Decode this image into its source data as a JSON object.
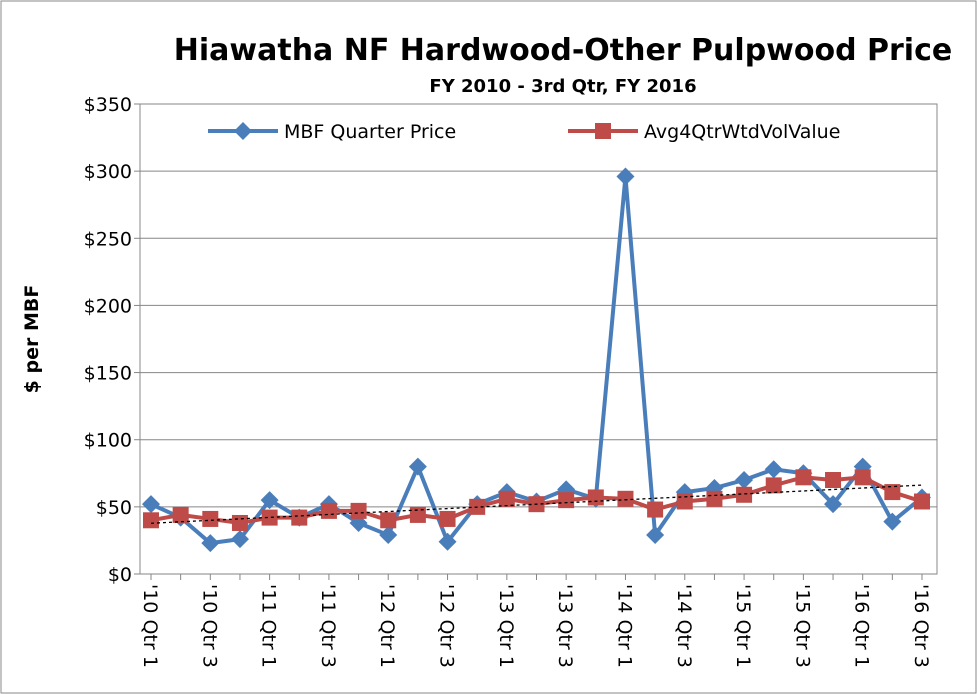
{
  "chart_data": {
    "type": "line",
    "title": "Hiawatha NF Hardwood-Other Pulpwood Price",
    "subtitle": "FY 2010 - 3rd Qtr, FY 2016",
    "y_label": "$ per MBF",
    "categories": [
      "'10 Qtr 1",
      null,
      "'10 Qtr 3",
      null,
      "'11 Qtr 1",
      null,
      "'11 Qtr 3",
      null,
      "'12 Qtr 1",
      null,
      "'12 Qtr 3",
      null,
      "'13 Qtr 1",
      null,
      "'13 Qtr 3",
      null,
      "'14 Qtr 1",
      null,
      "'14 Qtr 3",
      null,
      "'15 Qtr 1",
      null,
      "'15 Qtr 3",
      null,
      "'16 Qtr 1",
      null,
      "'16 Qtr 3"
    ],
    "series": [
      {
        "name": "MBF Quarter Price",
        "color": "#4a7ebb",
        "marker": "diamond",
        "values": [
          52,
          42,
          23,
          26,
          55,
          42,
          52,
          38,
          29,
          80,
          24,
          52,
          61,
          54,
          63,
          56,
          296,
          29,
          61,
          64,
          70,
          78,
          75,
          52,
          80,
          39,
          57
        ]
      },
      {
        "name": "Avg4QtrWtdVolValue",
        "color": "#be4b48",
        "marker": "square",
        "values": [
          40,
          44,
          41,
          38,
          42,
          42,
          47,
          47,
          40,
          44,
          41,
          50,
          56,
          52,
          55,
          57,
          56,
          48,
          54,
          56,
          59,
          66,
          72,
          70,
          72,
          61,
          54
        ]
      }
    ],
    "trendline": true,
    "ylim": [
      0,
      350
    ],
    "yticks": [
      {
        "value": 0,
        "label": "$0"
      },
      {
        "value": 50,
        "label": "$50"
      },
      {
        "value": 100,
        "label": "$100"
      },
      {
        "value": 150,
        "label": "$150"
      },
      {
        "value": 200,
        "label": "$200"
      },
      {
        "value": 250,
        "label": "$250"
      },
      {
        "value": 300,
        "label": "$300"
      },
      {
        "value": 350,
        "label": "$350"
      }
    ],
    "grid": true,
    "legend": "top"
  }
}
